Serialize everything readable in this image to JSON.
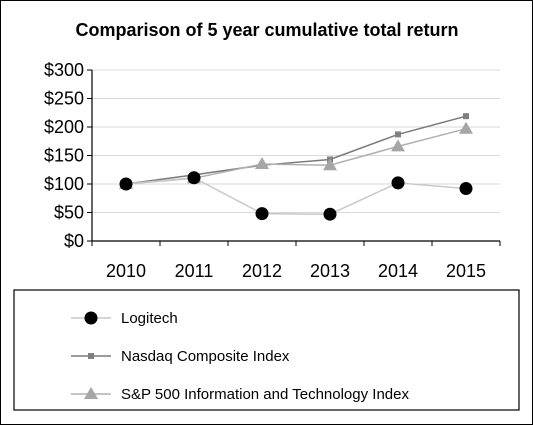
{
  "chart_data": {
    "type": "line",
    "title": "Comparison of 5 year cumulative total return",
    "categories": [
      "2010",
      "2011",
      "2012",
      "2013",
      "2014",
      "2015"
    ],
    "ylim": [
      0,
      300
    ],
    "yticks": [
      "$0",
      "$50",
      "$100",
      "$150",
      "$200",
      "$250",
      "$300"
    ],
    "ytick_values": [
      0,
      50,
      100,
      150,
      200,
      250,
      300
    ],
    "grid": true,
    "legend_position": "bottom",
    "series": [
      {
        "name": "Logitech",
        "values": [
          100,
          111,
          48,
          47,
          102,
          92
        ],
        "color": "#000000",
        "line_color": "#c8c8c8",
        "marker": "circle"
      },
      {
        "name": "Nasdaq Composite Index",
        "values": [
          100,
          116,
          133,
          143,
          187,
          219
        ],
        "color": "#808080",
        "line_color": "#7a7a7a",
        "marker": "square"
      },
      {
        "name": "S&P 500 Information and Technology Index",
        "values": [
          100,
          110,
          135,
          133,
          166,
          197
        ],
        "color": "#a6a6a6",
        "line_color": "#b0b0b0",
        "marker": "triangle"
      }
    ]
  }
}
